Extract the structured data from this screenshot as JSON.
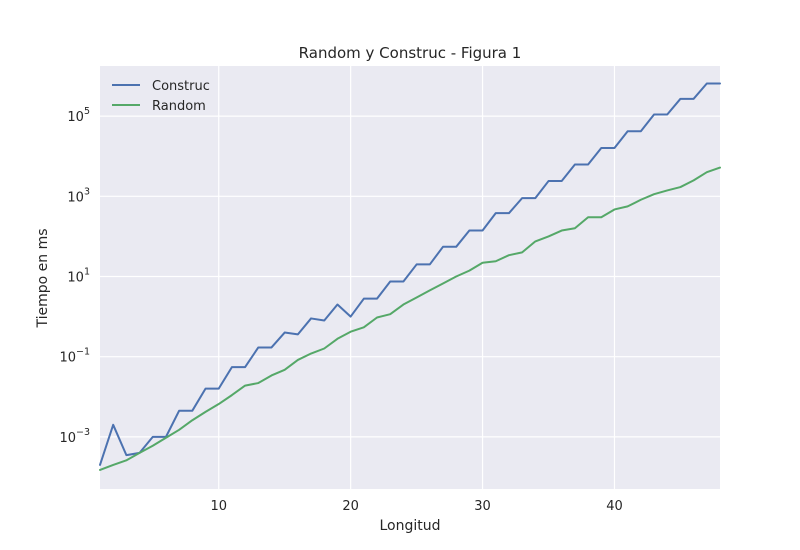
{
  "chart_data": {
    "type": "line",
    "title": "Random y Construc - Figura 1",
    "xlabel": "Longitud",
    "ylabel": "Tiempo en ms",
    "xlim": [
      1,
      48
    ],
    "ylim_log10": [
      -4.3,
      6.25
    ],
    "yscale": "log",
    "grid": true,
    "legend_position": "top-left",
    "x_ticks": [
      10,
      20,
      30,
      40
    ],
    "y_ticks": [
      {
        "exp": -3,
        "label": "−3"
      },
      {
        "exp": -1,
        "label": "−1"
      },
      {
        "exp": 1,
        "label": "1"
      },
      {
        "exp": 3,
        "label": "3"
      },
      {
        "exp": 5,
        "label": "5"
      }
    ],
    "y_tick_base": "10",
    "x": [
      1,
      2,
      3,
      4,
      5,
      6,
      7,
      8,
      9,
      10,
      11,
      12,
      13,
      14,
      15,
      16,
      17,
      18,
      19,
      20,
      21,
      22,
      23,
      24,
      25,
      26,
      27,
      28,
      29,
      30,
      31,
      32,
      33,
      34,
      35,
      36,
      37,
      38,
      39,
      40,
      41,
      42,
      43,
      44,
      45,
      46,
      47,
      48
    ],
    "series": [
      {
        "name": "Construc",
        "color": "#4c72b0",
        "values": [
          0.0002,
          0.002,
          0.00035,
          0.0004,
          0.001,
          0.001,
          0.0045,
          0.0045,
          0.016,
          0.016,
          0.055,
          0.055,
          0.17,
          0.17,
          0.4,
          0.36,
          0.9,
          0.8,
          2.0,
          1.0,
          2.8,
          2.8,
          7.5,
          7.5,
          20,
          20,
          55,
          55,
          140,
          140,
          380,
          380,
          900,
          900,
          2400,
          2400,
          6200,
          6200,
          16000,
          16000,
          42000,
          42000,
          110000,
          110000,
          270000,
          270000,
          650000,
          650000
        ]
      },
      {
        "name": "Random",
        "color": "#55a868",
        "values": [
          0.00015,
          0.0002,
          0.00026,
          0.0004,
          0.0006,
          0.00095,
          0.0015,
          0.0026,
          0.0042,
          0.0066,
          0.011,
          0.019,
          0.022,
          0.034,
          0.047,
          0.083,
          0.12,
          0.16,
          0.28,
          0.42,
          0.54,
          0.95,
          1.15,
          2.0,
          3.0,
          4.5,
          6.7,
          10,
          14,
          22,
          24,
          34,
          40,
          75,
          100,
          140,
          160,
          300,
          300,
          470,
          560,
          820,
          1130,
          1400,
          1700,
          2500,
          4000,
          5200
        ]
      }
    ]
  }
}
